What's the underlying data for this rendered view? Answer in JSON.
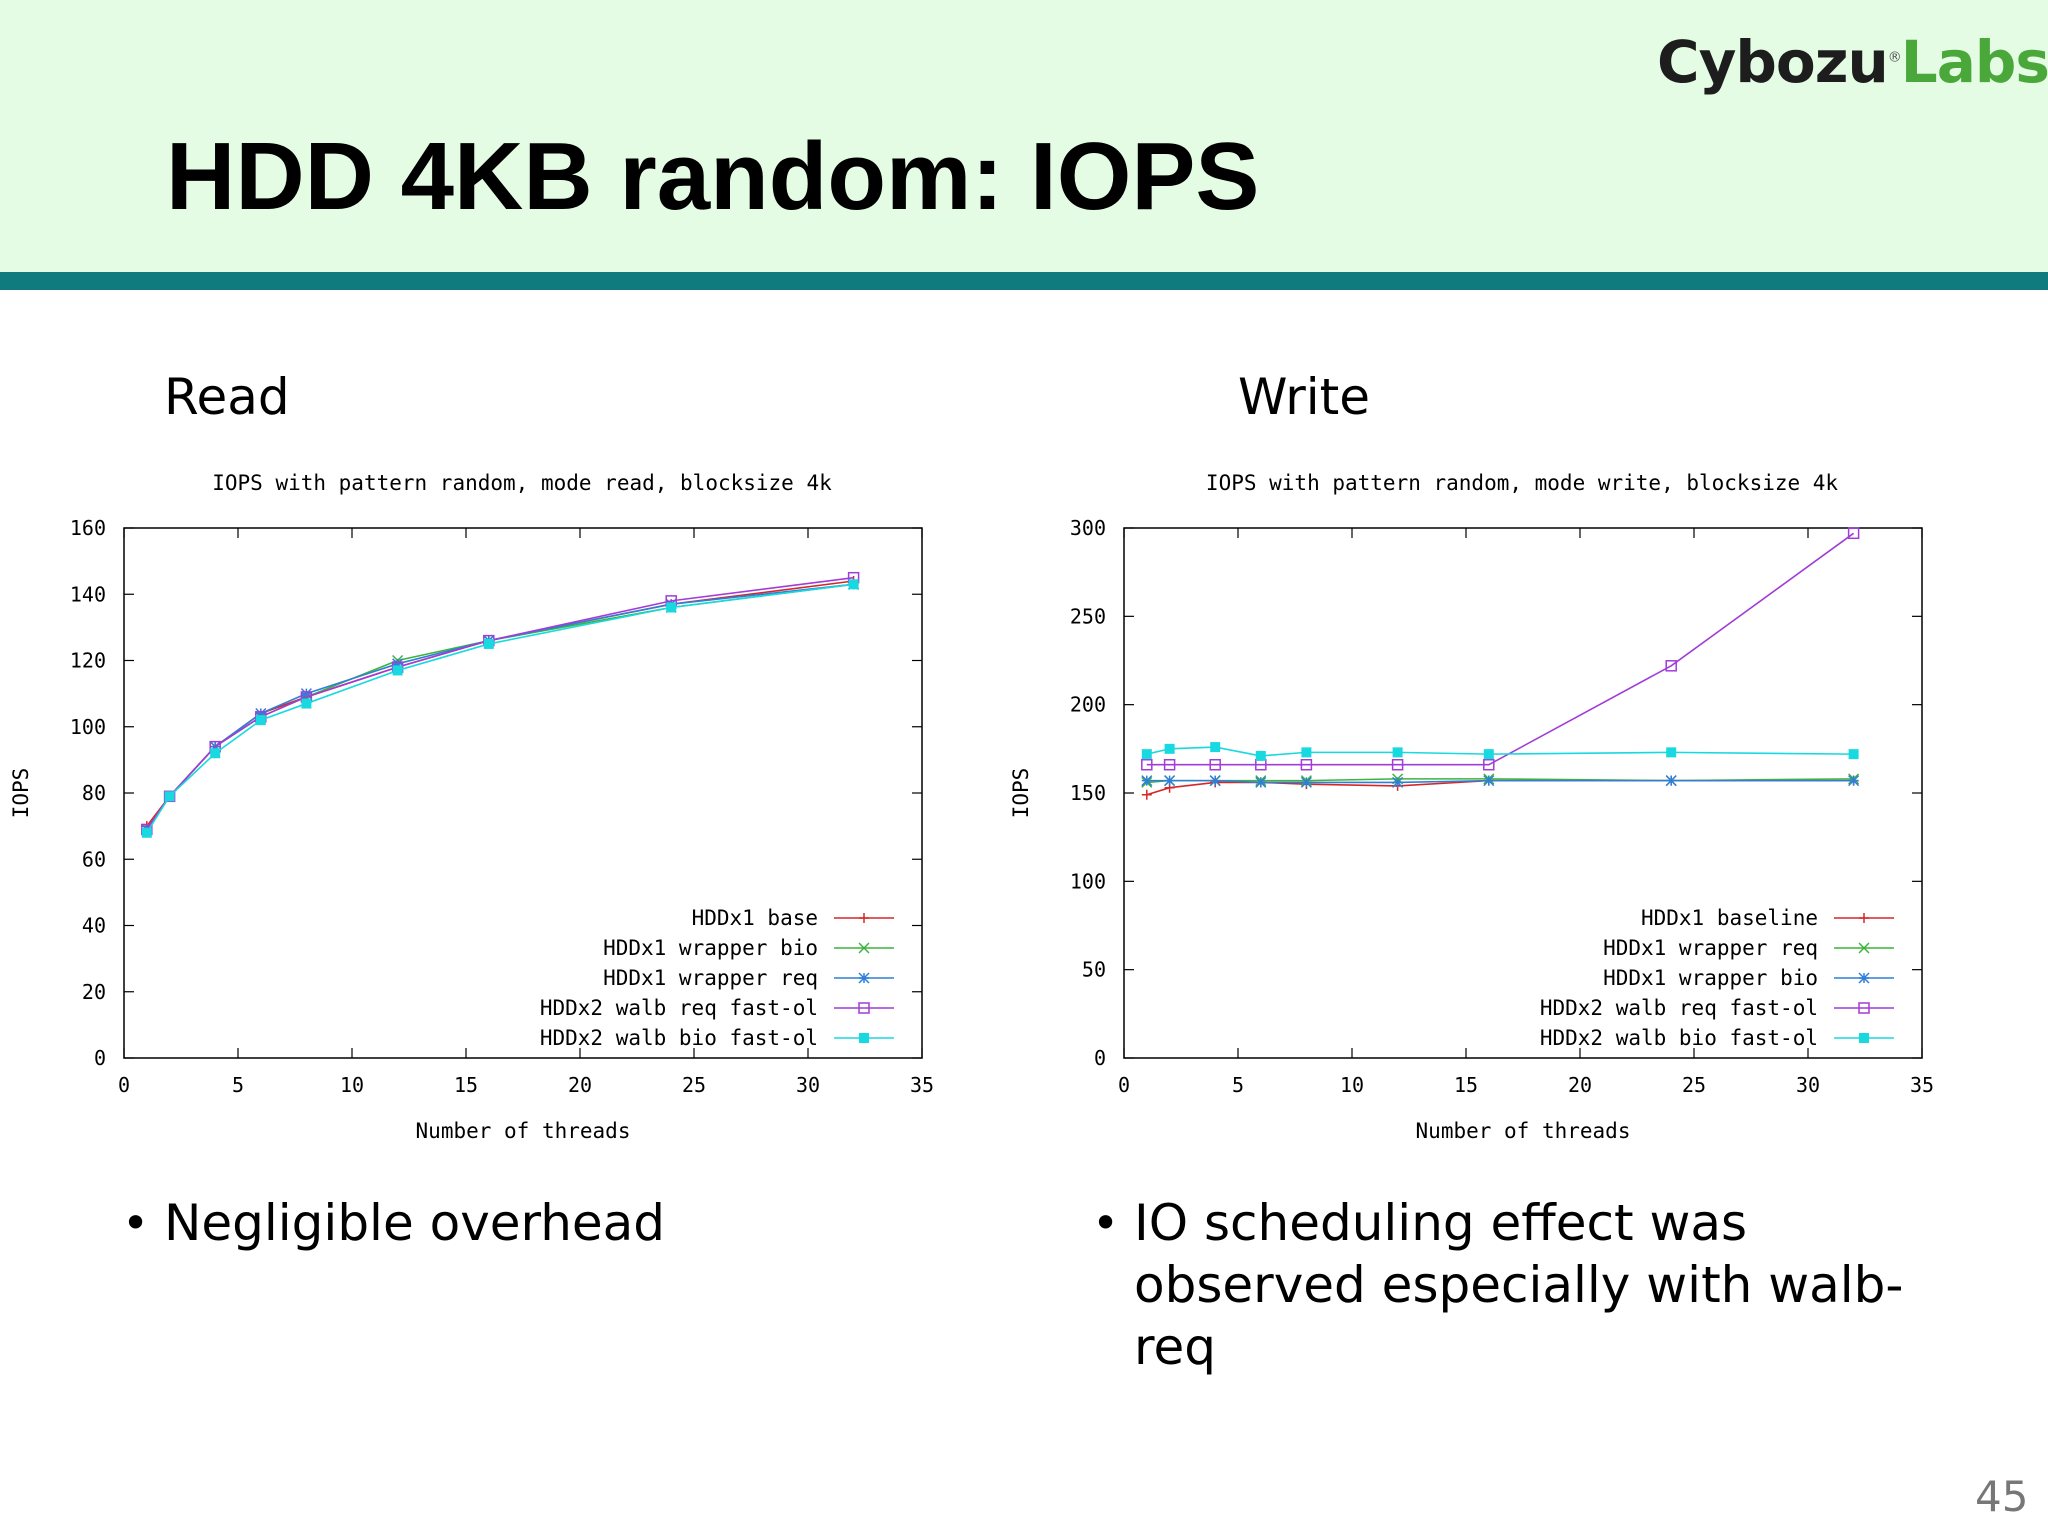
{
  "slide": {
    "title": "HDD 4KB random: IOPS",
    "logo_part1": "Cybozu",
    "logo_mark": "®",
    "logo_part2": "Labs",
    "page_number": "45"
  },
  "panels": {
    "read_label": "Read",
    "write_label": "Write",
    "read_bullet": "Negligible overhead",
    "write_bullet": "IO scheduling effect was observed especially with walb-req",
    "bullet_char": "•"
  },
  "colors": {
    "header_bg": "#e4fbe4",
    "header_bar": "#0f7b7e",
    "logo_accent": "#4aa83a",
    "series": [
      "#d62728",
      "#3cb43c",
      "#2f7fd8",
      "#a23cd6",
      "#19d9e0"
    ]
  },
  "chart_data": [
    {
      "type": "line",
      "title": "IOPS with pattern random, mode read, blocksize 4k",
      "xlabel": "Number of threads",
      "ylabel": "IOPS",
      "xlim": [
        0,
        35
      ],
      "ylim": [
        0,
        160
      ],
      "xticks": [
        0,
        5,
        10,
        15,
        20,
        25,
        30,
        35
      ],
      "yticks": [
        0,
        20,
        40,
        60,
        80,
        100,
        120,
        140,
        160
      ],
      "x": [
        1,
        2,
        4,
        6,
        8,
        12,
        16,
        24,
        32
      ],
      "legend_position": "bottom-right",
      "grid": false,
      "series": [
        {
          "name": "HDDx1 base",
          "marker": "plus",
          "values": [
            70,
            79,
            94,
            104,
            109,
            118,
            126,
            137,
            144
          ]
        },
        {
          "name": "HDDx1 wrapper bio",
          "marker": "cross",
          "values": [
            69,
            79,
            94,
            103,
            109,
            120,
            126,
            136,
            143
          ]
        },
        {
          "name": "HDDx1 wrapper req",
          "marker": "star",
          "values": [
            69,
            79,
            94,
            104,
            110,
            119,
            126,
            137,
            143
          ]
        },
        {
          "name": "HDDx2 walb req fast-ol",
          "marker": "open-square",
          "values": [
            69,
            79,
            94,
            103,
            109,
            118,
            126,
            138,
            145
          ]
        },
        {
          "name": "HDDx2 walb bio fast-ol",
          "marker": "filled-square",
          "values": [
            68,
            79,
            92,
            102,
            107,
            117,
            125,
            136,
            143
          ]
        }
      ]
    },
    {
      "type": "line",
      "title": "IOPS with pattern random, mode write, blocksize 4k",
      "xlabel": "Number of threads",
      "ylabel": "IOPS",
      "xlim": [
        0,
        35
      ],
      "ylim": [
        0,
        300
      ],
      "xticks": [
        0,
        5,
        10,
        15,
        20,
        25,
        30,
        35
      ],
      "yticks": [
        0,
        50,
        100,
        150,
        200,
        250,
        300
      ],
      "x": [
        1,
        2,
        4,
        6,
        8,
        12,
        16,
        24,
        32
      ],
      "legend_position": "bottom-right",
      "grid": false,
      "series": [
        {
          "name": "HDDx1 baseline",
          "marker": "plus",
          "values": [
            149,
            153,
            156,
            156,
            155,
            154,
            157,
            157,
            157
          ]
        },
        {
          "name": "HDDx1 wrapper req",
          "marker": "cross",
          "values": [
            156,
            157,
            157,
            157,
            157,
            158,
            158,
            157,
            158
          ]
        },
        {
          "name": "HDDx1 wrapper bio",
          "marker": "star",
          "values": [
            157,
            157,
            157,
            156,
            156,
            156,
            157,
            157,
            157
          ]
        },
        {
          "name": "HDDx2 walb req fast-ol",
          "marker": "open-square",
          "values": [
            166,
            166,
            166,
            166,
            166,
            166,
            166,
            222,
            297
          ]
        },
        {
          "name": "HDDx2 walb bio fast-ol",
          "marker": "filled-square",
          "values": [
            172,
            175,
            176,
            171,
            173,
            173,
            172,
            173,
            172
          ]
        }
      ]
    }
  ]
}
